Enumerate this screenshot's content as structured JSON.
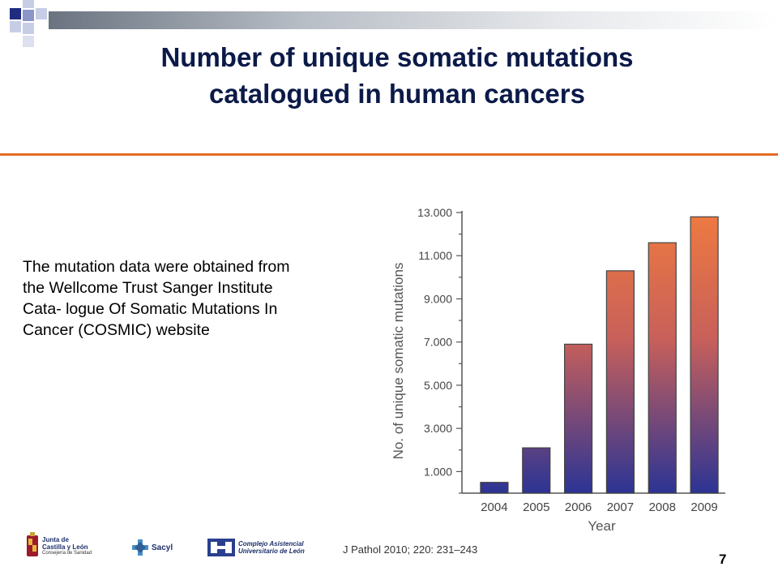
{
  "slide": {
    "title_line1": "Number of unique somatic mutations",
    "title_line2": "catalogued in human cancers",
    "body_lines": [
      "The mutation data were obtained from",
      "the Wellcome Trust Sanger Institute",
      "Cata- logue Of Somatic Mutations In",
      "Cancer (COSMIC) website"
    ],
    "citation": "J Pathol 2010; 220: 231–243",
    "page_number": "7",
    "accent_color": "#e46c24",
    "title_color": "#0b1a48",
    "logos": {
      "junta_line1": "Junta de",
      "junta_line2": "Castilla y León",
      "junta_line3": "Consejería de Sanidad",
      "sacyl": "Sacyl",
      "complejo_line1": "Complejo Asistencial",
      "complejo_line2": "Universitario de León"
    }
  },
  "chart_data": {
    "type": "bar",
    "categories": [
      "2004",
      "2005",
      "2006",
      "2007",
      "2008",
      "2009"
    ],
    "values": [
      500,
      2100,
      6900,
      10300,
      11600,
      12800
    ],
    "xlabel": "Year",
    "ylabel": "No. of unique somatic mutations",
    "yticks": [
      "1.000",
      "3.000",
      "5.000",
      "7.000",
      "9.000",
      "11.000",
      "13.000"
    ],
    "ytick_values": [
      1000,
      3000,
      5000,
      7000,
      9000,
      11000,
      13000
    ],
    "ylim": [
      0,
      13000
    ],
    "grid": false,
    "bar_gradient": [
      "#ee7a40",
      "#2c3494"
    ]
  }
}
